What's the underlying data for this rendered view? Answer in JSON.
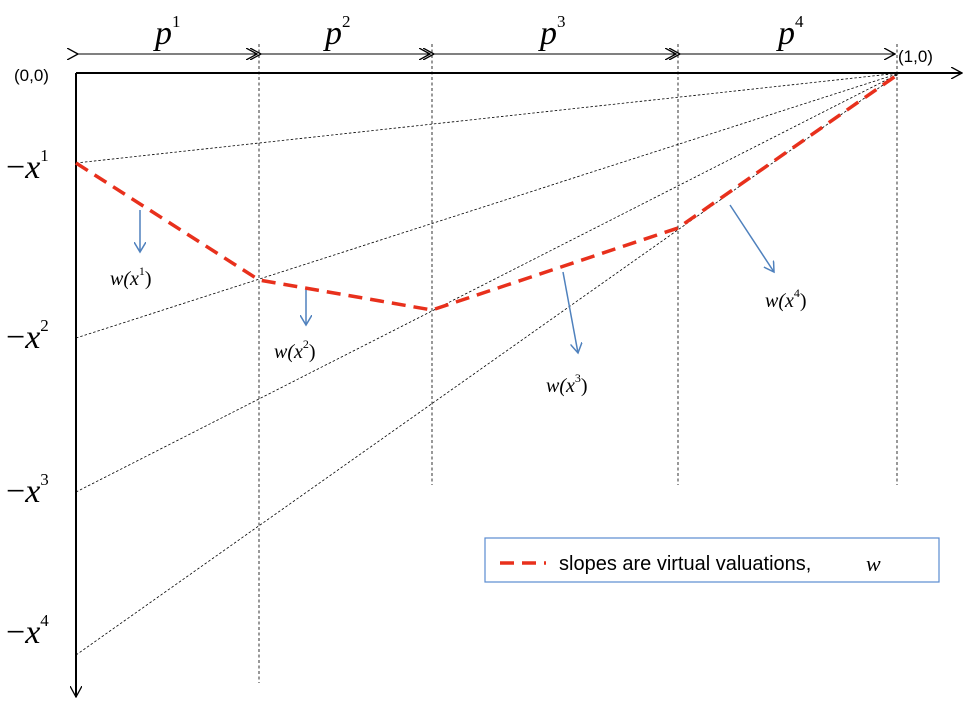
{
  "axes": {
    "origin_label": "(0,0)",
    "end_label": "(1,0)"
  },
  "intervals": [
    {
      "base": "p",
      "sup": "1"
    },
    {
      "base": "p",
      "sup": "2"
    },
    {
      "base": "p",
      "sup": "3"
    },
    {
      "base": "p",
      "sup": "4"
    }
  ],
  "y_labels": [
    {
      "prefix": "−",
      "base": "x",
      "sup": "1"
    },
    {
      "prefix": "−",
      "base": "x",
      "sup": "2"
    },
    {
      "prefix": "−",
      "base": "x",
      "sup": "3"
    },
    {
      "prefix": "−",
      "base": "x",
      "sup": "4"
    }
  ],
  "annotations": [
    {
      "fn": "w(",
      "base": "x",
      "sup": "1",
      "close": ")"
    },
    {
      "fn": "w(",
      "base": "x",
      "sup": "2",
      "close": ")"
    },
    {
      "fn": "w(",
      "base": "x",
      "sup": "3",
      "close": ")"
    },
    {
      "fn": "w(",
      "base": "x",
      "sup": "4",
      "close": ")"
    }
  ],
  "legend": {
    "text": "slopes are virtual valuations,",
    "symbol": "w"
  },
  "colors": {
    "curve": "#e8301c",
    "arrow": "#4f81bd",
    "axis": "#000000",
    "legend_border": "#5b8bd0"
  }
}
